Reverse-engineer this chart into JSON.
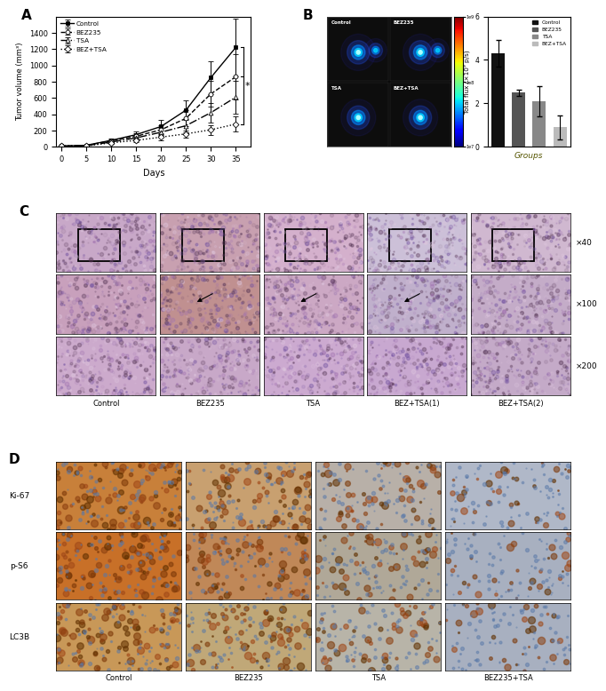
{
  "panel_A": {
    "days": [
      0,
      5,
      10,
      15,
      20,
      25,
      30,
      35
    ],
    "control_mean": [
      10,
      20,
      80,
      150,
      250,
      450,
      850,
      1220
    ],
    "control_err": [
      5,
      8,
      20,
      40,
      80,
      120,
      200,
      350
    ],
    "bez235_mean": [
      10,
      18,
      75,
      130,
      210,
      350,
      650,
      860
    ],
    "bez235_err": [
      4,
      7,
      18,
      35,
      60,
      100,
      160,
      280
    ],
    "tsa_mean": [
      10,
      15,
      60,
      110,
      180,
      260,
      420,
      610
    ],
    "tsa_err": [
      4,
      6,
      15,
      30,
      50,
      80,
      120,
      200
    ],
    "bez_tsa_mean": [
      10,
      12,
      50,
      80,
      120,
      160,
      210,
      280
    ],
    "bez_tsa_err": [
      3,
      5,
      12,
      20,
      35,
      45,
      60,
      90
    ],
    "xlabel": "Days",
    "ylabel": "Tumor volume (mm³)",
    "ylim": [
      0,
      1600
    ],
    "yticks": [
      0,
      200,
      400,
      600,
      800,
      1000,
      1200,
      1400
    ],
    "legend_labels": [
      "Control",
      "BEZ235",
      "TSA",
      "BEZ+TSA"
    ]
  },
  "panel_B_bar": {
    "groups": [
      "Control",
      "BEZ235",
      "TSA",
      "BEZ+TSA"
    ],
    "values": [
      4.3,
      2.5,
      2.1,
      0.9
    ],
    "errors": [
      0.6,
      0.15,
      0.7,
      0.55
    ],
    "colors": [
      "#111111",
      "#555555",
      "#888888",
      "#bbbbbb"
    ],
    "ylabel": "Total flux (×10⁹ p/s)",
    "xlabel": "Groups",
    "ylim": [
      0,
      6
    ],
    "yticks": [
      0,
      2,
      4,
      6
    ],
    "legend_labels": [
      "Control",
      "BEZ235",
      "TSA",
      "BEZ+TSA"
    ]
  },
  "panel_C_labels_col": [
    "Control",
    "BEZ235",
    "TSA",
    "BEZ+TSA(1)",
    "BEZ+TSA(2)"
  ],
  "panel_C_labels_row": [
    "×40",
    "×100",
    "×200"
  ],
  "panel_D_row_labels": [
    "Ki-67",
    "p-S6",
    "LC3B"
  ],
  "panel_D_col_labels": [
    "Control",
    "BEZ235",
    "TSA",
    "BEZ235+TSA"
  ],
  "bg_color": "#ffffff"
}
